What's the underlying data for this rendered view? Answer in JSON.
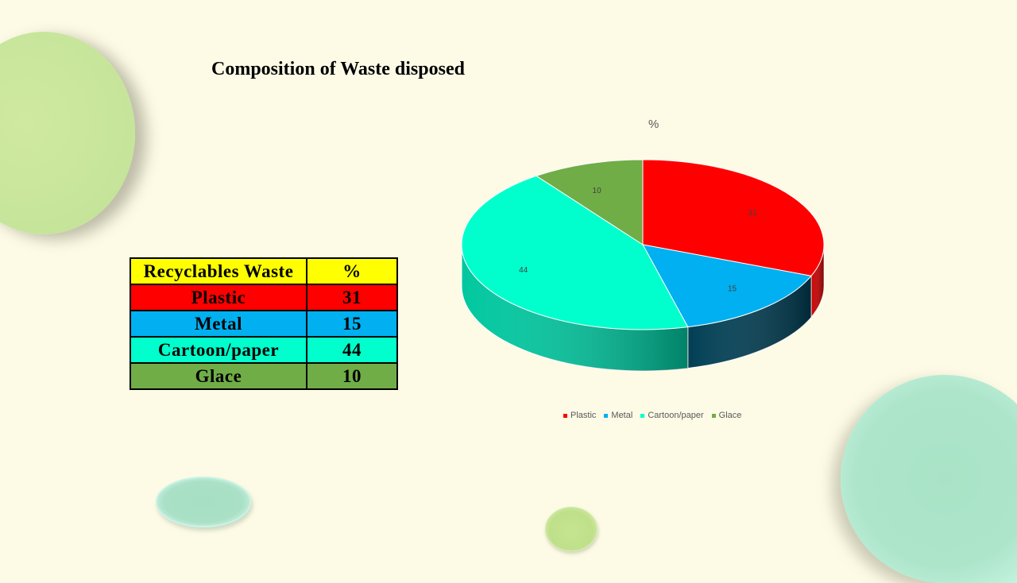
{
  "title": "Composition of Waste disposed",
  "table": {
    "headers": [
      "Recyclables Waste",
      "%"
    ],
    "rows": [
      {
        "label": "Plastic",
        "value": "31"
      },
      {
        "label": "Metal",
        "value": "15"
      },
      {
        "label": "Cartoon/paper",
        "value": "44"
      },
      {
        "label": "Glace",
        "value": "10"
      }
    ],
    "header_color": "#ffff00",
    "row_colors": [
      "#ff0000",
      "#00b0f0",
      "#00ffcc",
      "#70ad47"
    ]
  },
  "chart_data": {
    "type": "pie",
    "title": "%",
    "categories": [
      "Plastic",
      "Metal",
      "Cartoon/paper",
      "Glace"
    ],
    "values": [
      31,
      15,
      44,
      10
    ],
    "colors": [
      "#ff0000",
      "#00b0f0",
      "#00ffcc",
      "#70ad47"
    ],
    "legend_position": "bottom",
    "three_d": true
  }
}
